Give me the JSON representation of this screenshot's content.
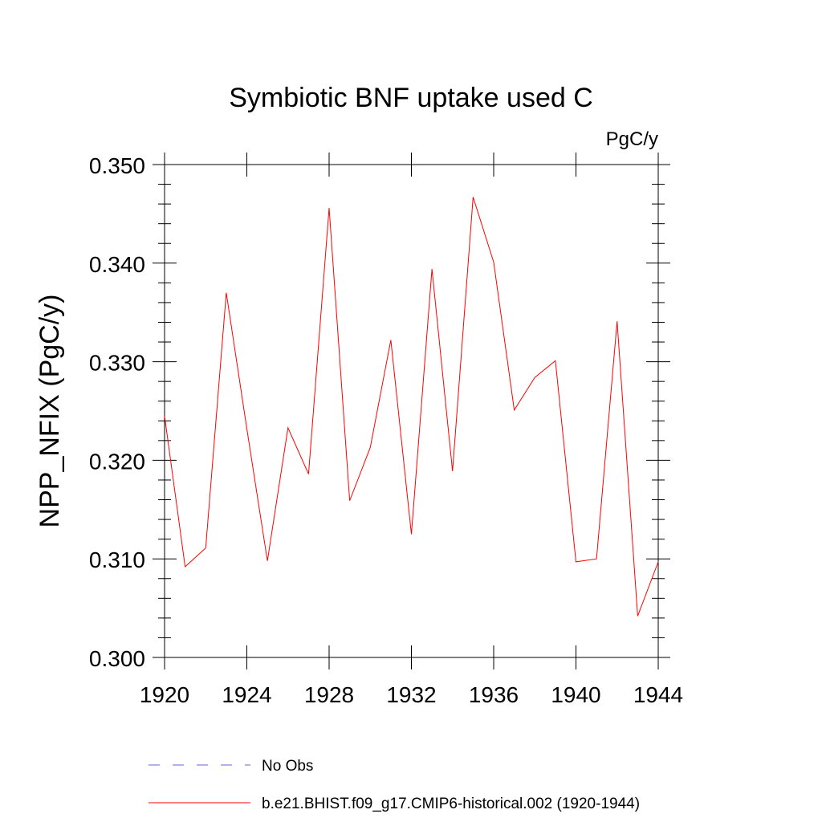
{
  "chart_data": {
    "type": "line",
    "title": "Symbiotic BNF uptake used C",
    "units_label": "PgC/y",
    "xlabel": "",
    "ylabel": "NPP_NFIX  (PgC/y)",
    "xlim": [
      1920,
      1944
    ],
    "ylim": [
      0.3,
      0.35
    ],
    "x_ticks": [
      1920,
      1924,
      1928,
      1932,
      1936,
      1940,
      1944
    ],
    "x_tick_labels": [
      "1920",
      "1924",
      "1928",
      "1932",
      "1936",
      "1940",
      "1944"
    ],
    "y_ticks": [
      0.3,
      0.31,
      0.32,
      0.33,
      0.34,
      0.35
    ],
    "y_tick_labels": [
      "0.300",
      "0.310",
      "0.320",
      "0.330",
      "0.340",
      "0.350"
    ],
    "grid": false,
    "legend_position": "bottom",
    "x": [
      1920,
      1921,
      1922,
      1923,
      1924,
      1925,
      1926,
      1927,
      1928,
      1929,
      1930,
      1931,
      1932,
      1933,
      1934,
      1935,
      1936,
      1937,
      1938,
      1939,
      1940,
      1941,
      1942,
      1943,
      1944
    ],
    "series": [
      {
        "name": "b.e21.BHIST.f09_g17.CMIP6-historical.002 (1920-1944)",
        "color": "#ff0000",
        "dash": "solid",
        "values": [
          0.3245,
          0.3092,
          0.3111,
          0.337,
          0.3232,
          0.3098,
          0.3233,
          0.3186,
          0.3456,
          0.3159,
          0.3213,
          0.3322,
          0.3125,
          0.3394,
          0.3189,
          0.3467,
          0.3401,
          0.3251,
          0.3284,
          0.3301,
          0.3097,
          0.31,
          0.3341,
          0.3042,
          0.3097
        ]
      }
    ],
    "legend": [
      {
        "label": "No Obs",
        "color": "#6666cc",
        "dash": "dashed"
      },
      {
        "label": "b.e21.BHIST.f09_g17.CMIP6-historical.002 (1920-1944)",
        "color": "#ff0000",
        "dash": "solid"
      }
    ]
  }
}
